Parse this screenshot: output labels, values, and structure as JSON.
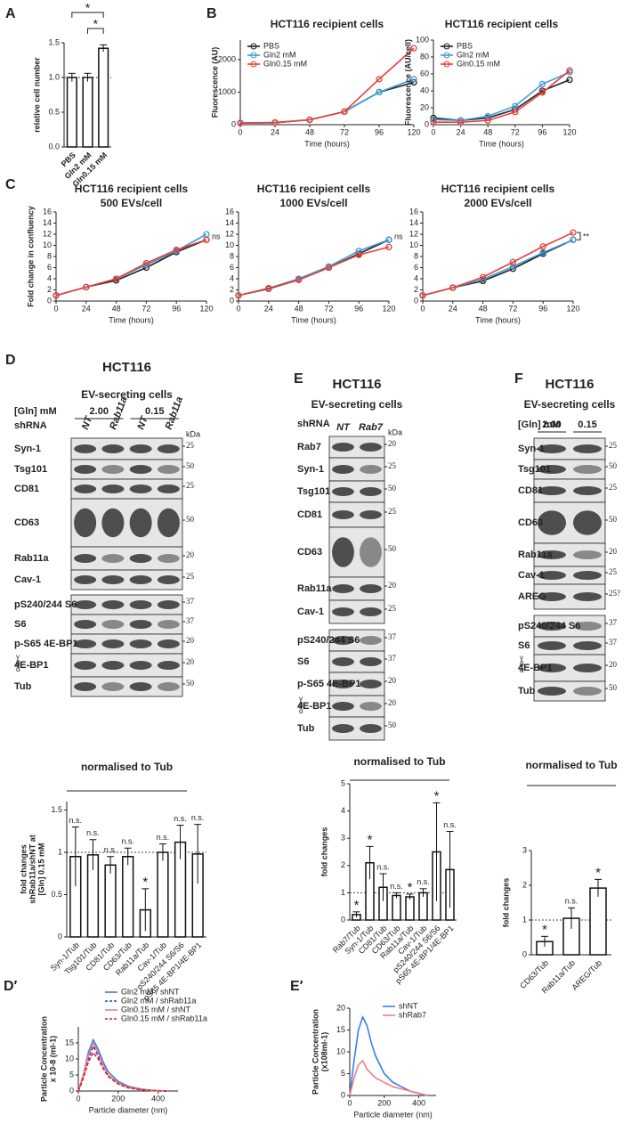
{
  "panel_labels": [
    "A",
    "B",
    "C",
    "D",
    "E",
    "F",
    "D′",
    "E′"
  ],
  "chart_data": [
    {
      "type": "bar",
      "categories": [
        "PBS",
        "Gln2 mM",
        "Gln0.15 mM"
      ],
      "values": [
        1.0,
        1.0,
        1.42
      ],
      "errors": [
        0.06,
        0.06,
        0.05
      ],
      "ylabel": [
        "relative cell number"
      ],
      "ylim": [
        0,
        1.5
      ],
      "yticks": [
        {
          "value": 0,
          "label": "0.0"
        },
        0.5,
        {
          "value": 1,
          "label": "1.0"
        },
        1.5
      ],
      "reference_line": 1,
      "annotations": [
        "*",
        "*"
      ]
    },
    {
      "type": "line",
      "title": "HCT116 recipient cells",
      "x": [
        0,
        24,
        48,
        72,
        96,
        120
      ],
      "xlim": [
        0,
        120
      ],
      "xticks": [
        0,
        24,
        48,
        72,
        96,
        120
      ],
      "xlabel": "Time (hours)",
      "ylabel": [
        "Fluorescence (AU)"
      ],
      "ylim": [
        0,
        2600
      ],
      "yticks": [
        0,
        1000,
        2000
      ],
      "legend": "upper left",
      "series": [
        {
          "name": "PBS",
          "color": "#222222",
          "values": [
            50,
            60,
            150,
            400,
            1000,
            1300
          ]
        },
        {
          "name": "Gln2 mM",
          "color": "#3a9ad9",
          "values": [
            50,
            60,
            150,
            400,
            1000,
            1400
          ]
        },
        {
          "name": "Gln0.15 mM",
          "color": "#e8403a",
          "values": [
            50,
            70,
            150,
            400,
            1400,
            2350
          ]
        }
      ]
    },
    {
      "type": "line",
      "title": "HCT116 recipient cells",
      "x": [
        0,
        24,
        48,
        72,
        96,
        120
      ],
      "xlim": [
        0,
        120
      ],
      "xticks": [
        0,
        24,
        48,
        72,
        96,
        120
      ],
      "xlabel": "Time (hours)",
      "ylabel": [
        "Fluorescence (AU/cell)"
      ],
      "ylim": [
        0,
        100
      ],
      "yticks": [
        0,
        20,
        40,
        60,
        80,
        100
      ],
      "legend": "upper left",
      "series": [
        {
          "name": "PBS",
          "color": "#222222",
          "values": [
            8,
            5,
            8,
            18,
            40,
            53
          ]
        },
        {
          "name": "Gln2 mM",
          "color": "#3a9ad9",
          "values": [
            6,
            5,
            10,
            22,
            48,
            62
          ]
        },
        {
          "name": "Gln0.15 mM",
          "color": "#e8403a",
          "values": [
            3,
            3,
            5,
            15,
            38,
            64
          ]
        }
      ]
    },
    {
      "type": "line",
      "title": "HCT116 recipient cells",
      "subtitle": "500 EVs/cell",
      "x": [
        0,
        24,
        48,
        72,
        96,
        120
      ],
      "xlim": [
        0,
        120
      ],
      "xticks": [
        0,
        24,
        48,
        72,
        96,
        120
      ],
      "xlabel": "Time (hours)",
      "ylabel": [
        "Fold change in confluency"
      ],
      "ylim": [
        0,
        16
      ],
      "yticks": [
        0,
        2,
        4,
        6,
        8,
        10,
        12,
        14,
        16
      ],
      "annotation": "ns",
      "series": [
        {
          "color": "#222222",
          "values": [
            1,
            2.5,
            3.7,
            6,
            8.8,
            11
          ]
        },
        {
          "color": "#3a9ad9",
          "values": [
            1,
            2.5,
            4,
            6.5,
            9,
            12
          ]
        },
        {
          "color": "#e8403a",
          "values": [
            1,
            2.5,
            4,
            6.8,
            9.2,
            11
          ]
        }
      ]
    },
    {
      "type": "line",
      "title": "HCT116 recipient cells",
      "subtitle": "1000 EVs/cell",
      "x": [
        0,
        24,
        48,
        72,
        96,
        120
      ],
      "xlim": [
        0,
        120
      ],
      "xticks": [
        0,
        24,
        48,
        72,
        96,
        120
      ],
      "xlabel": "Time (hours)",
      "ylim": [
        0,
        16
      ],
      "yticks": [
        0,
        2,
        4,
        6,
        8,
        10,
        12,
        14,
        16
      ],
      "annotation": "ns",
      "series": [
        {
          "color": "#222222",
          "values": [
            1,
            2.2,
            3.8,
            6,
            8.5,
            11
          ]
        },
        {
          "color": "#3a9ad9",
          "values": [
            1,
            2.3,
            4,
            6.2,
            9,
            11
          ]
        },
        {
          "color": "#e8403a",
          "values": [
            1,
            2.3,
            3.8,
            6,
            8.3,
            9.7
          ]
        }
      ]
    },
    {
      "type": "line",
      "title": "HCT116 recipient cells",
      "subtitle": "2000 EVs/cell",
      "x": [
        0,
        24,
        48,
        72,
        96,
        120
      ],
      "xlim": [
        0,
        120
      ],
      "xticks": [
        0,
        24,
        48,
        72,
        96,
        120
      ],
      "xlabel": "Time (hours)",
      "ylim": [
        0,
        16
      ],
      "yticks": [
        0,
        2,
        4,
        6,
        8,
        10,
        12,
        14,
        16
      ],
      "annotation": "**",
      "series": [
        {
          "color": "#222222",
          "values": [
            1,
            2.4,
            3.6,
            5.8,
            8.5,
            11
          ]
        },
        {
          "color": "#3a9ad9",
          "values": [
            1,
            2.4,
            3.9,
            6.2,
            8.7,
            11
          ]
        },
        {
          "color": "#e8403a",
          "values": [
            1,
            2.4,
            4.3,
            7,
            9.8,
            12.3
          ]
        }
      ]
    },
    {
      "type": "bar",
      "header": "normalised to Tub",
      "categories": [
        "Syn-1/Tub",
        "Tsg101/Tub",
        "CD81/Tub",
        "CD63/Tub",
        "Rab11a/Tub",
        "Cav-1/Tub",
        "pS240/244 S6/S6",
        "pS65 4E-BP1/4E-BP1"
      ],
      "values": [
        0.95,
        0.97,
        0.85,
        0.95,
        0.32,
        1.0,
        1.12,
        0.98
      ],
      "errors": [
        0.35,
        0.18,
        0.1,
        0.1,
        0.25,
        0.1,
        0.2,
        0.35
      ],
      "ylabel": [
        "fold changes",
        "shRab11a/shNT at",
        "[Gln] 0.15 mM"
      ],
      "ylim": [
        0,
        1.6
      ],
      "yticks": [
        0,
        0.5,
        1,
        1.5
      ],
      "reference_line": 1,
      "value_annotations": [
        "n.s.",
        "n.s.",
        "n.s.",
        "n.s.",
        "*",
        "n.s.",
        "n.s.",
        "n.s."
      ],
      "annotation_colors": [
        "#333333",
        "#333333",
        "#333333",
        "#333333",
        "#1f4fd8",
        "#333333",
        "#333333",
        "#333333"
      ]
    },
    {
      "type": "bar",
      "header": "normalised to Tub",
      "categories": [
        "Rab7/Tub",
        "Syn-1/Tub",
        "CD81/Tub",
        "CD63/Tub",
        "Rab11a/Tub",
        "Cav-1/Tub",
        "pS240/244 S6/S6",
        "pS65 4E-BP1/4E-BP1"
      ],
      "values": [
        0.2,
        2.1,
        1.2,
        0.9,
        0.85,
        1.0,
        2.5,
        1.85
      ],
      "errors": [
        0.1,
        0.6,
        0.5,
        0.1,
        0.1,
        0.15,
        1.8,
        1.4
      ],
      "ylabel": [
        "fold changes"
      ],
      "ylim": [
        0,
        5
      ],
      "yticks": [
        0,
        1,
        2,
        3,
        4,
        5
      ],
      "reference_line": 1,
      "value_annotations": [
        "*",
        "*",
        "n.s.",
        "n.s.",
        "*",
        "n.s.",
        "*",
        "n.s."
      ],
      "annotation_colors": [
        "#1f4fd8",
        "#e32222",
        "#333333",
        "#333333",
        "#1f4fd8",
        "#333333",
        "#e32222",
        "#333333"
      ]
    },
    {
      "type": "bar",
      "header": "normalised to Tub",
      "categories": [
        "CD63/Tub",
        "Rab11a/Tub",
        "AREG/Tub"
      ],
      "values": [
        0.38,
        1.05,
        1.92
      ],
      "errors": [
        0.15,
        0.3,
        0.25
      ],
      "ylabel": [
        "fold changes"
      ],
      "ylim": [
        0,
        3
      ],
      "yticks": [
        0,
        1,
        2,
        3
      ],
      "reference_line": 1,
      "value_annotations": [
        "*",
        "n.s.",
        "*"
      ],
      "annotation_colors": [
        "#1f4fd8",
        "#333333",
        "#e32222"
      ]
    },
    {
      "type": "line",
      "x": [
        0,
        25,
        50,
        75,
        100,
        125,
        150,
        200,
        250,
        300,
        350,
        400,
        450
      ],
      "xlim": [
        0,
        500
      ],
      "xticks": [
        0,
        200,
        400
      ],
      "xlabel": "Particle diameter (nm)",
      "ylabel": [
        "Particle Concentration",
        "x 10-8 (ml-1)"
      ],
      "ylim": [
        0,
        20
      ],
      "yticks": [
        0,
        5,
        10,
        15
      ],
      "legend": "upper right",
      "series": [
        {
          "name": "Gln2 mM / shNT",
          "color": "#3a7ee8",
          "values": [
            0,
            5,
            12,
            16,
            13,
            9,
            6,
            3,
            1.5,
            0.8,
            0.3,
            0.1,
            0
          ]
        },
        {
          "name": "Gln2 mM / shRab11a",
          "color": "#2b3fbf",
          "dash": true,
          "values": [
            0,
            4,
            10,
            14,
            11,
            8,
            5,
            2.5,
            1.2,
            0.6,
            0.3,
            0.1,
            0
          ]
        },
        {
          "name": "Gln0.15 mM / shNT",
          "color": "#f08080",
          "values": [
            0,
            5,
            11,
            15,
            12,
            8,
            5,
            2.5,
            1.2,
            0.6,
            0.2,
            0.1,
            0
          ]
        },
        {
          "name": "Gln0.15 mM / shRab11a",
          "color": "#d2222d",
          "dash": true,
          "values": [
            0,
            4,
            9,
            12,
            10,
            7,
            4.5,
            2.2,
            1,
            0.5,
            0.2,
            0.1,
            0
          ]
        }
      ]
    },
    {
      "type": "line",
      "x": [
        0,
        25,
        50,
        75,
        100,
        125,
        150,
        200,
        250,
        300,
        350,
        400,
        450
      ],
      "xlim": [
        0,
        500
      ],
      "xticks": [
        0,
        200,
        400
      ],
      "xlabel": "Particle diameter (nm)",
      "ylabel": [
        "Particle Concentration",
        "(x108ml-1)"
      ],
      "ylim": [
        0,
        20
      ],
      "yticks": [
        0,
        5,
        10,
        15,
        20
      ],
      "legend": "upper right",
      "series": [
        {
          "name": "shNT",
          "color": "#3a7ee8",
          "values": [
            0,
            8,
            15,
            18,
            16,
            12,
            9,
            5,
            3,
            2,
            1,
            0.5,
            0
          ]
        },
        {
          "name": "shRab7",
          "color": "#f08080",
          "values": [
            0,
            4,
            7,
            8,
            6,
            5,
            4,
            3,
            2,
            1.5,
            1,
            0.5,
            0
          ]
        }
      ]
    }
  ],
  "blots": [
    {
      "title": "HCT116",
      "subtitle": "EV-secreting cells",
      "condition_label": "[Gln] mM",
      "conditions": [
        "2.00",
        "0.15"
      ],
      "shrna_label": "shRNA",
      "lanes": [
        "NT",
        "Rab11a",
        "NT",
        "Rab11a"
      ],
      "unit": "kDa",
      "rows": [
        {
          "name": "Syn-1",
          "marker": "25"
        },
        {
          "name": "Tsg101",
          "marker": "50"
        },
        {
          "name": "CD81",
          "marker": "25"
        },
        {
          "name": "CD63",
          "marker": "50"
        },
        {
          "name": "Rab11a",
          "marker": "20"
        },
        {
          "name": "Cav-1",
          "marker": "25"
        },
        {
          "name": "pS240/244 S6",
          "marker": "37"
        },
        {
          "name": "S6",
          "marker": "37"
        },
        {
          "name": "p-S65 4E-BP1",
          "marker": "20"
        },
        {
          "name": "4E-BP1",
          "marker": "20",
          "isoforms": [
            "γ",
            "β",
            "α"
          ]
        },
        {
          "name": "Tub",
          "marker": "50"
        }
      ]
    },
    {
      "title": "HCT116",
      "subtitle": "EV-secreting cells",
      "shrna_label": "shRNA",
      "lanes": [
        "NT",
        "Rab7"
      ],
      "unit": "kDa",
      "rows": [
        {
          "name": "Rab7",
          "marker": "20"
        },
        {
          "name": "Syn-1",
          "marker": "25"
        },
        {
          "name": "Tsg101",
          "marker": "50"
        },
        {
          "name": "CD81",
          "marker": "25"
        },
        {
          "name": "CD63",
          "marker": "50"
        },
        {
          "name": "Rab11a",
          "marker": "20"
        },
        {
          "name": "Cav-1",
          "marker": "25"
        },
        {
          "name": "pS240/244 S6",
          "marker": "37"
        },
        {
          "name": "S6",
          "marker": "37"
        },
        {
          "name": "p-S65 4E-BP1",
          "marker": "20"
        },
        {
          "name": "4E-BP1",
          "marker": "20",
          "isoforms": [
            "γ",
            "β",
            "α"
          ]
        },
        {
          "name": "Tub",
          "marker": "50"
        }
      ]
    },
    {
      "title": "HCT116",
      "subtitle": "EV-secreting cells",
      "condition_label": "[Gln] mM",
      "conditions": [
        "2.00",
        "0.15"
      ],
      "rows": [
        {
          "name": "Syn-1",
          "marker": "25"
        },
        {
          "name": "Tsg101",
          "marker": "50"
        },
        {
          "name": "CD81",
          "marker": "25"
        },
        {
          "name": "CD63",
          "marker": "50"
        },
        {
          "name": "Rab11a",
          "marker": "20"
        },
        {
          "name": "Cav-1",
          "marker": "25"
        },
        {
          "name": "AREG",
          "marker": "25?"
        },
        {
          "name": "pS240/244 S6",
          "marker": "37"
        },
        {
          "name": "S6",
          "marker": "37"
        },
        {
          "name": "4E-BP1",
          "marker": "20",
          "isoforms": [
            "γ",
            "β",
            "α"
          ]
        },
        {
          "name": "Tub",
          "marker": "50"
        }
      ]
    }
  ]
}
